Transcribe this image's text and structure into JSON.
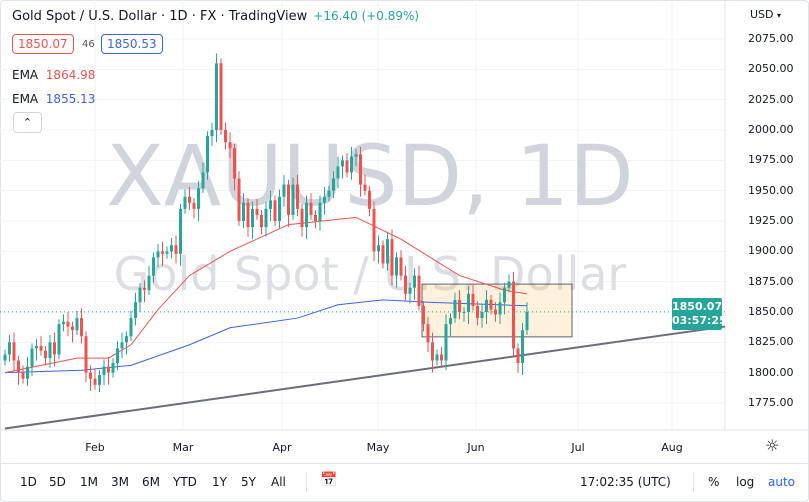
{
  "header": {
    "title": "Gold Spot / U.S. Dollar · 1D · FX  · TradingView",
    "change": "+16.40 (+0.89%)",
    "bid": "1850.07",
    "spread": "46",
    "ask": "1850.53",
    "collapse_icon": "chevron-up-icon"
  },
  "indicators": [
    {
      "label": "EMA",
      "value": "1864.98",
      "color": "#ef5350"
    },
    {
      "label": "EMA",
      "value": "1855.13",
      "color": "#3c64e0"
    }
  ],
  "watermark": {
    "symbol": "XAUUSD, 1D",
    "description": "Gold Spot / U.S. Dollar"
  },
  "price_axis": {
    "currency": "USD",
    "last_price": "1850.07",
    "countdown": "03:57:25"
  },
  "bottom_bar": {
    "ranges": [
      "1D",
      "5D",
      "1M",
      "3M",
      "6M",
      "YTD",
      "1Y",
      "5Y",
      "All"
    ],
    "goto_icon": "calendar-goto-icon",
    "clock": "17:02:35 (UTC)",
    "percent": "%",
    "log": "log",
    "auto": "auto",
    "settings_icon": "gear-sun-icon"
  },
  "chart_data": {
    "type": "candlestick",
    "x_tick_labels": [
      "Feb",
      "Mar",
      "Apr",
      "May",
      "Jun",
      "Jul",
      "Aug"
    ],
    "y_ticks": [
      2075,
      2050,
      2025,
      2000,
      1975,
      1950,
      1925,
      1900,
      1875,
      1850,
      1825,
      1800,
      1775
    ],
    "ylim": [
      1760,
      2090
    ],
    "grid": true,
    "colors": {
      "up": "#26a69a",
      "down": "#ef5350"
    },
    "closes": [
      1815,
      1825,
      1810,
      1800,
      1795,
      1805,
      1820,
      1822,
      1818,
      1812,
      1825,
      1815,
      1840,
      1842,
      1838,
      1835,
      1845,
      1830,
      1800,
      1795,
      1790,
      1798,
      1805,
      1800,
      1808,
      1820,
      1825,
      1830,
      1845,
      1858,
      1870,
      1868,
      1880,
      1895,
      1900,
      1898,
      1900,
      1905,
      1898,
      1935,
      1945,
      1940,
      1935,
      1952,
      1965,
      1995,
      2000,
      2055,
      2000,
      1990,
      1985,
      1960,
      1925,
      1940,
      1920,
      1935,
      1930,
      1920,
      1935,
      1942,
      1925,
      1945,
      1955,
      1930,
      1955,
      1935,
      1920,
      1940,
      1930,
      1925,
      1940,
      1945,
      1950,
      1960,
      1970,
      1975,
      1965,
      1978,
      1980,
      1955,
      1950,
      1935,
      1900,
      1905,
      1890,
      1910,
      1880,
      1895,
      1880,
      1865,
      1870,
      1880,
      1855,
      1840,
      1825,
      1810,
      1815,
      1810,
      1840,
      1845,
      1860,
      1850,
      1850,
      1865,
      1855,
      1845,
      1850,
      1860,
      1852,
      1848,
      1858,
      1870,
      1875,
      1820,
      1808,
      1835,
      1850.07
    ],
    "ema_fast": [
      [
        0,
        1800
      ],
      [
        16,
        1812
      ],
      [
        23,
        1812
      ],
      [
        28,
        1823
      ],
      [
        34,
        1852
      ],
      [
        41,
        1880
      ],
      [
        50,
        1900
      ],
      [
        63,
        1922
      ],
      [
        78,
        1928
      ],
      [
        88,
        1910
      ],
      [
        101,
        1880
      ],
      [
        111,
        1868
      ],
      [
        116,
        1864.98
      ]
    ],
    "ema_slow": [
      [
        0,
        1800
      ],
      [
        17,
        1802
      ],
      [
        28,
        1806
      ],
      [
        41,
        1823
      ],
      [
        50,
        1837
      ],
      [
        65,
        1845
      ],
      [
        74,
        1856
      ],
      [
        84,
        1860
      ],
      [
        94,
        1858
      ],
      [
        116,
        1855.13
      ]
    ],
    "trendline": [
      [
        0,
        1754
      ],
      [
        160,
        1838
      ]
    ],
    "range_box": {
      "from_bar": 94,
      "to_bar": 114,
      "top": 1873,
      "bottom": 1829.5
    },
    "last_price_line": 1850.07
  }
}
